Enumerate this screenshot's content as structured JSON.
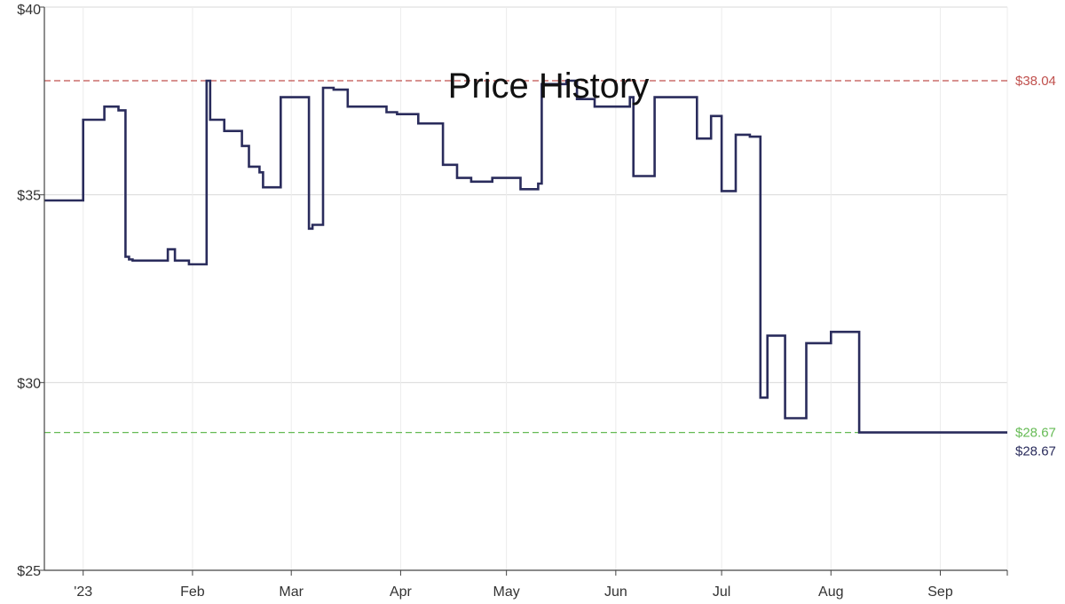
{
  "chart_data": {
    "type": "line",
    "title": "Price History",
    "xlabel": "",
    "ylabel": "",
    "ylim": [
      25,
      40
    ],
    "grid": true,
    "y_ticks": [
      "$25",
      "$30",
      "$35",
      "$40"
    ],
    "x_ticks": [
      {
        "label": "'23",
        "x": 0
      },
      {
        "label": "Feb",
        "x": 31
      },
      {
        "label": "Mar",
        "x": 59
      },
      {
        "label": "Apr",
        "x": 90
      },
      {
        "label": "May",
        "x": 120
      },
      {
        "label": "Jun",
        "x": 151
      },
      {
        "label": "Jul",
        "x": 181
      },
      {
        "label": "Aug",
        "x": 212
      },
      {
        "label": "Sep",
        "x": 243
      }
    ],
    "xlim": [
      -11,
      262
    ],
    "reference_lines": [
      {
        "value": 38.04,
        "label": "$38.04",
        "color": "#c0504d"
      },
      {
        "value": 28.67,
        "label": "$28.67",
        "color": "#66bb55"
      }
    ],
    "current_label": "$28.67",
    "series": [
      {
        "color": "#2a2c5c",
        "step": true,
        "x": [
          -11,
          0,
          6,
          10,
          12,
          13,
          14,
          15,
          24,
          26,
          30,
          35,
          36,
          37,
          40,
          44,
          45,
          47,
          48,
          50,
          51,
          56,
          64,
          65,
          68,
          71,
          72,
          75,
          86,
          89,
          93,
          95,
          102,
          106,
          110,
          116,
          124,
          125,
          129,
          130,
          135,
          137,
          140,
          145,
          155,
          156,
          162,
          174,
          178,
          181,
          185,
          189,
          192,
          194,
          195,
          199,
          203,
          205,
          208,
          212,
          220,
          226,
          236,
          241,
          243,
          245,
          246,
          247,
          249,
          251,
          257,
          259,
          260
        ],
        "y": [
          34.85,
          37.0,
          37.35,
          37.25,
          33.35,
          33.28,
          33.25,
          33.25,
          33.55,
          33.25,
          33.15,
          38.04,
          37.0,
          37.0,
          36.7,
          36.7,
          36.3,
          35.75,
          35.75,
          35.6,
          35.2,
          37.6,
          34.1,
          34.2,
          37.85,
          37.8,
          37.8,
          37.35,
          37.2,
          37.15,
          37.15,
          36.9,
          35.8,
          35.45,
          35.35,
          35.45,
          35.15,
          35.15,
          35.3,
          37.95,
          37.95,
          38.04,
          37.55,
          37.35,
          37.6,
          35.5,
          37.6,
          36.5,
          37.1,
          35.1,
          36.6,
          36.55,
          29.6,
          31.25,
          31.25,
          29.05,
          29.05,
          31.05,
          31.05,
          31.35,
          28.67,
          28.67,
          28.67,
          28.67,
          28.67,
          28.67,
          28.67,
          28.67,
          28.67,
          28.67,
          28.67,
          28.67,
          28.67
        ]
      }
    ]
  }
}
